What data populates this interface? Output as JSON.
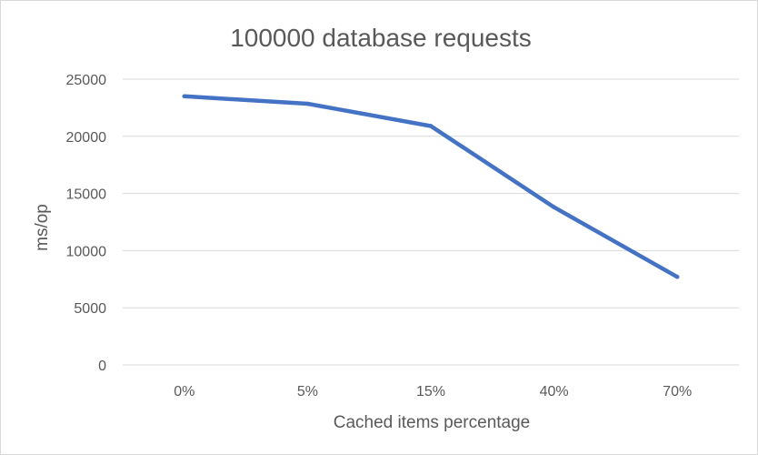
{
  "chart_data": {
    "type": "line",
    "title": "100000 database requests",
    "xlabel": "Cached items percentage",
    "ylabel": "ms/op",
    "categories": [
      "0%",
      "5%",
      "15%",
      "40%",
      "70%"
    ],
    "series": [
      {
        "values": [
          23500,
          22850,
          20900,
          13800,
          7700
        ],
        "color": "#4472c4"
      }
    ],
    "ylim": [
      0,
      25000
    ],
    "yticks": [
      0,
      5000,
      10000,
      15000,
      20000,
      25000
    ],
    "grid": true,
    "legend": "none"
  }
}
